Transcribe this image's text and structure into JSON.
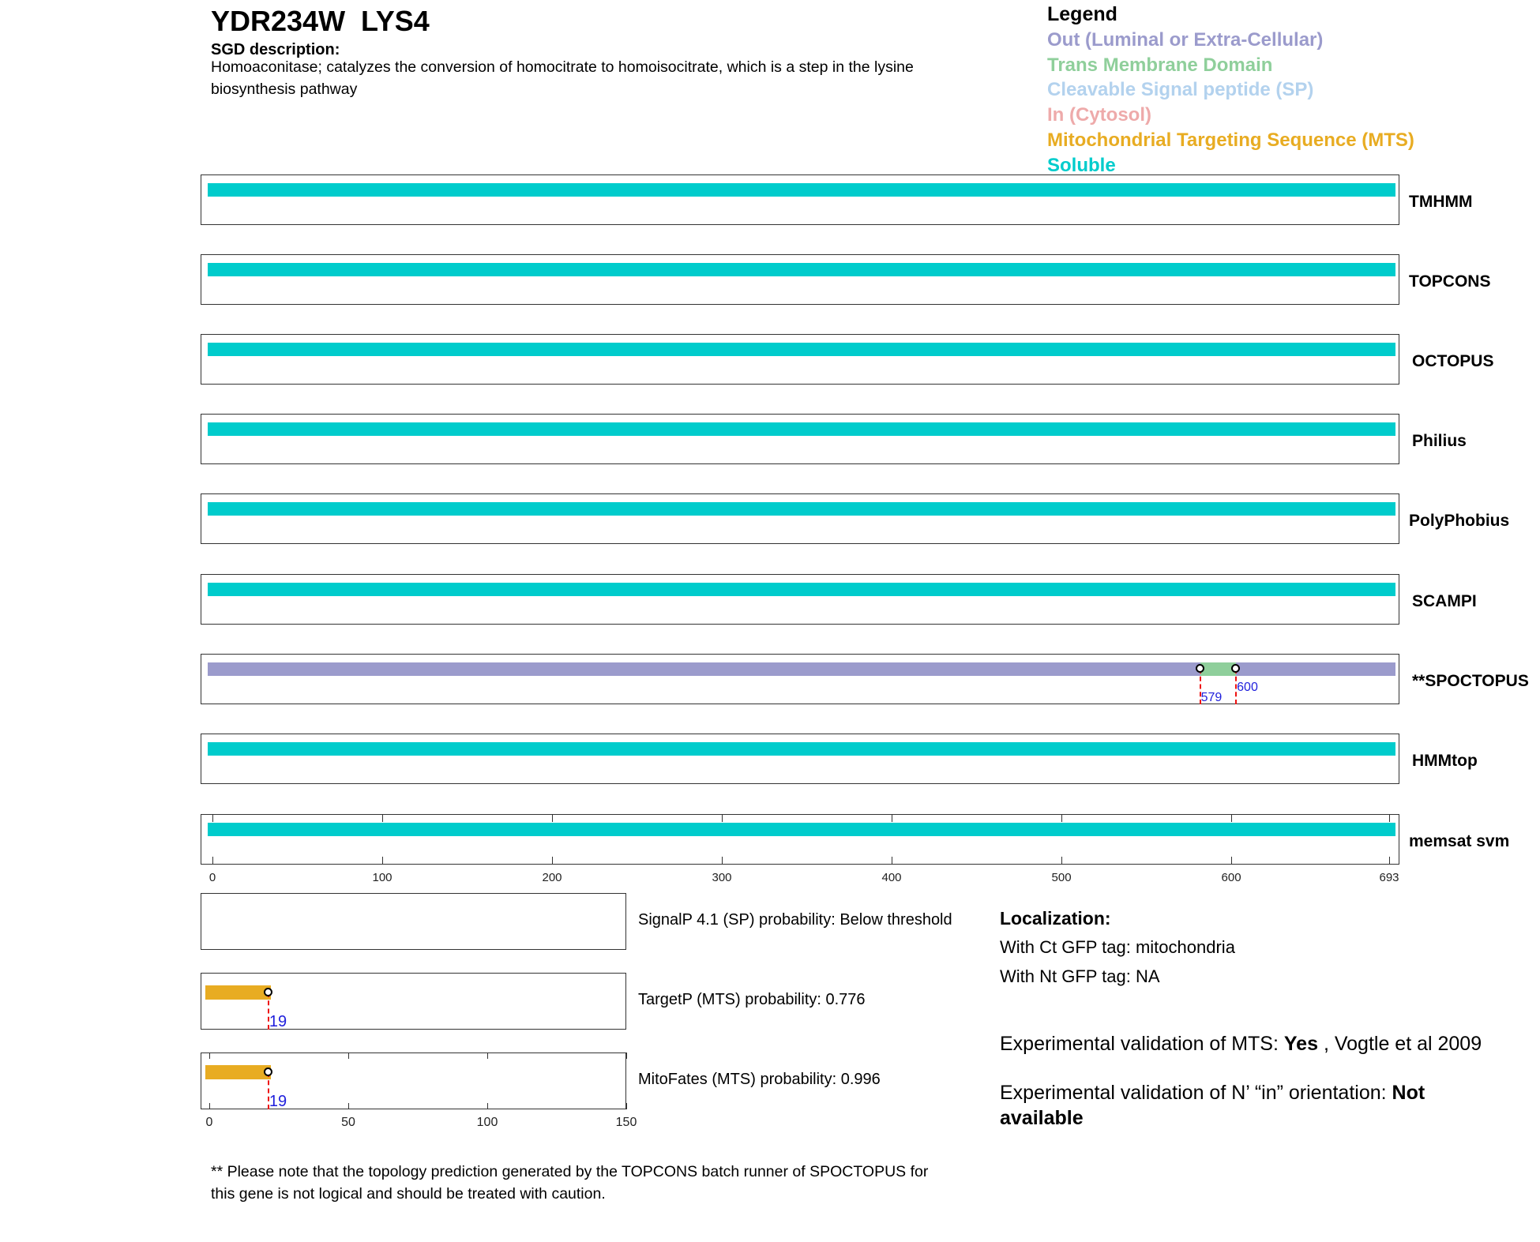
{
  "header": {
    "title": "YDR234W  LYS4",
    "sgd_heading": "SGD description:",
    "sgd_description": "Homoaconitase; catalyzes the conversion of homocitrate to homoisocitrate, which is a step in the lysine biosynthesis pathway"
  },
  "legend": {
    "title": "Legend",
    "items": [
      {
        "label": "Out (Luminal or Extra-Cellular)",
        "color": "#9b9bcc"
      },
      {
        "label": "Trans Membrane Domain",
        "color": "#8fcf9b"
      },
      {
        "label": "Cleavable Signal peptide (SP)",
        "color": "#b3d2ee"
      },
      {
        "label": "In (Cytosol)",
        "color": "#eeaaaa"
      },
      {
        "label": "Mitochondrial Targeting Sequence (MTS)",
        "color": "#e8ac22"
      },
      {
        "label": "Soluble",
        "color": "#00cccc"
      }
    ]
  },
  "chart_data": [
    {
      "type": "topology-tracks",
      "xlim": [
        0,
        693
      ],
      "xticks": [
        0,
        100,
        200,
        300,
        400,
        500,
        600,
        693
      ],
      "tracks": [
        {
          "name": "TMHMM",
          "segments": [
            {
              "start": 0,
              "end": 693,
              "type": "Soluble"
            }
          ]
        },
        {
          "name": "TOPCONS",
          "segments": [
            {
              "start": 0,
              "end": 693,
              "type": "Soluble"
            }
          ]
        },
        {
          "name": "OCTOPUS",
          "segments": [
            {
              "start": 0,
              "end": 693,
              "type": "Soluble"
            }
          ]
        },
        {
          "name": "Philius",
          "segments": [
            {
              "start": 0,
              "end": 693,
              "type": "Soluble"
            }
          ]
        },
        {
          "name": "PolyPhobius",
          "segments": [
            {
              "start": 0,
              "end": 693,
              "type": "Soluble"
            }
          ]
        },
        {
          "name": "SCAMPI",
          "segments": [
            {
              "start": 0,
              "end": 693,
              "type": "Soluble"
            }
          ]
        },
        {
          "name": "**SPOCTOPUS",
          "segments": [
            {
              "start": 0,
              "end": 579,
              "type": "Out"
            },
            {
              "start": 579,
              "end": 600,
              "type": "TM"
            },
            {
              "start": 600,
              "end": 693,
              "type": "Out"
            }
          ],
          "markers": [
            579,
            600
          ]
        },
        {
          "name": "HMMtop",
          "segments": [
            {
              "start": 0,
              "end": 693,
              "type": "Soluble"
            }
          ]
        },
        {
          "name": "memsat svm",
          "segments": [
            {
              "start": 0,
              "end": 693,
              "type": "Soluble"
            }
          ]
        }
      ]
    },
    {
      "type": "n-terminal-predictions",
      "xlim": [
        0,
        150
      ],
      "xticks": [
        0,
        50,
        100,
        150
      ],
      "rows": [
        {
          "label": "SignalP 4.1 (SP) probability: Below threshold",
          "segments": []
        },
        {
          "label": "TargetP (MTS) probability: 0.776",
          "segments": [
            {
              "start": 0,
              "end": 19,
              "type": "MTS"
            }
          ],
          "markers": [
            19
          ]
        },
        {
          "label": "MitoFates (MTS) probability: 0.996",
          "segments": [
            {
              "start": 0,
              "end": 19,
              "type": "MTS"
            }
          ],
          "markers": [
            19
          ]
        }
      ]
    }
  ],
  "localization": {
    "heading": "Localization:",
    "ct": "With Ct GFP tag: mitochondria",
    "nt": "With Nt GFP tag: NA"
  },
  "validation": {
    "mts_prefix": "Experimental validation of MTS: ",
    "mts_value": "Yes",
    "mts_suffix": " , Vogtle et al 2009",
    "nin_prefix": "Experimental validation of N’ “in” orientation: ",
    "nin_value": "Not available"
  },
  "note": "** Please note that the topology prediction generated by the TOPCONS batch runner of SPOCTOPUS for this gene is not logical and should be treated with caution."
}
